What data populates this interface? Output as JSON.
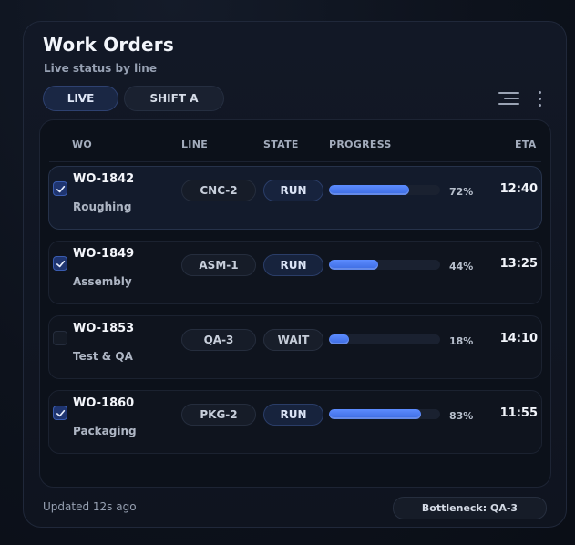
{
  "header": {
    "title": "Work Orders",
    "subtitle": "Live status by line"
  },
  "tabs": [
    {
      "label": "LIVE",
      "active": true
    },
    {
      "label": "SHIFT A",
      "active": false
    }
  ],
  "icons": {
    "filter": "filter-lines-icon",
    "more": "more-vertical-icon",
    "check": "checkmark-icon"
  },
  "table": {
    "columns": [
      "WO",
      "LINE",
      "STATE",
      "PROGRESS",
      "ETA"
    ],
    "rows": [
      {
        "wo": "WO-1842",
        "desc": "Roughing",
        "line": "CNC-2",
        "state": "RUN",
        "progress": 72,
        "progress_label": "72%",
        "eta": "12:40",
        "checked": true,
        "selected": true
      },
      {
        "wo": "WO-1849",
        "desc": "Assembly",
        "line": "ASM-1",
        "state": "RUN",
        "progress": 44,
        "progress_label": "44%",
        "eta": "13:25",
        "checked": true,
        "selected": false
      },
      {
        "wo": "WO-1853",
        "desc": "Test & QA",
        "line": "QA-3",
        "state": "WAIT",
        "progress": 18,
        "progress_label": "18%",
        "eta": "14:10",
        "checked": false,
        "selected": false
      },
      {
        "wo": "WO-1860",
        "desc": "Packaging",
        "line": "PKG-2",
        "state": "RUN",
        "progress": 83,
        "progress_label": "83%",
        "eta": "11:55",
        "checked": true,
        "selected": false
      }
    ]
  },
  "footer": {
    "updated": "Updated 12s ago",
    "bottleneck": "Bottleneck: QA-3"
  },
  "colors": {
    "accent": "#4a7cf0",
    "background": "#0b1019",
    "card": "#121826"
  }
}
